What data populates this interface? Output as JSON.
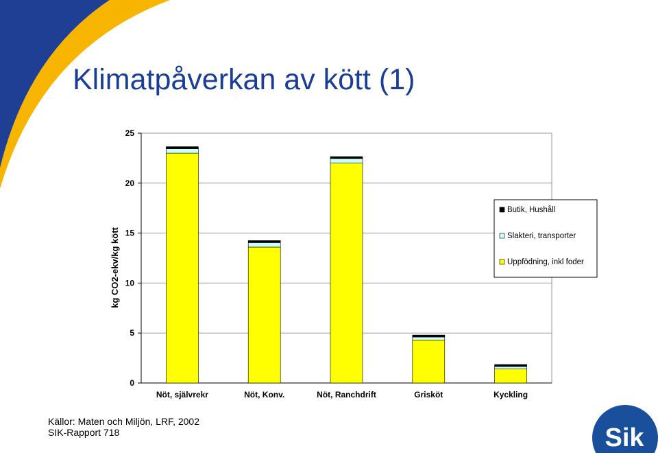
{
  "slide": {
    "title": "Klimatpåverkan av kött (1)",
    "sources": [
      "Källor: Maten och Miljön, LRF, 2002",
      "SIK-Rapport 718"
    ],
    "logo_text": "Sik"
  },
  "colors": {
    "title": "#1a3e96",
    "swoosh_blue": "#1f3f95",
    "swoosh_gold": "#f7b500",
    "logo_blue": "#1a4f9c"
  },
  "chart_data": {
    "type": "bar",
    "stacked": true,
    "ylabel": "kg CO2-ekv/kg kött",
    "xlabel": "",
    "ylim": [
      0,
      25
    ],
    "yticks": [
      0,
      5,
      10,
      15,
      20,
      25
    ],
    "grid": true,
    "legend_position": "right",
    "categories": [
      "Nöt, självrekr",
      "Nöt, Konv.",
      "Nöt, Ranchdrift",
      "Grisköt",
      "Kyckling"
    ],
    "series": [
      {
        "name": "Uppfödning, inkl foder",
        "color": "#ffff00",
        "values": [
          23.0,
          13.6,
          22.0,
          4.3,
          1.4
        ]
      },
      {
        "name": "Slakteri, transporter",
        "color": "#ccffff",
        "values": [
          0.45,
          0.45,
          0.45,
          0.3,
          0.25
        ]
      },
      {
        "name": "Butik, Hushåll",
        "color": "#000000",
        "values": [
          0.2,
          0.2,
          0.2,
          0.2,
          0.2
        ]
      }
    ],
    "legend_order": [
      "Butik, Hushåll",
      "Slakteri, transporter",
      "Uppfödning, inkl foder"
    ]
  }
}
